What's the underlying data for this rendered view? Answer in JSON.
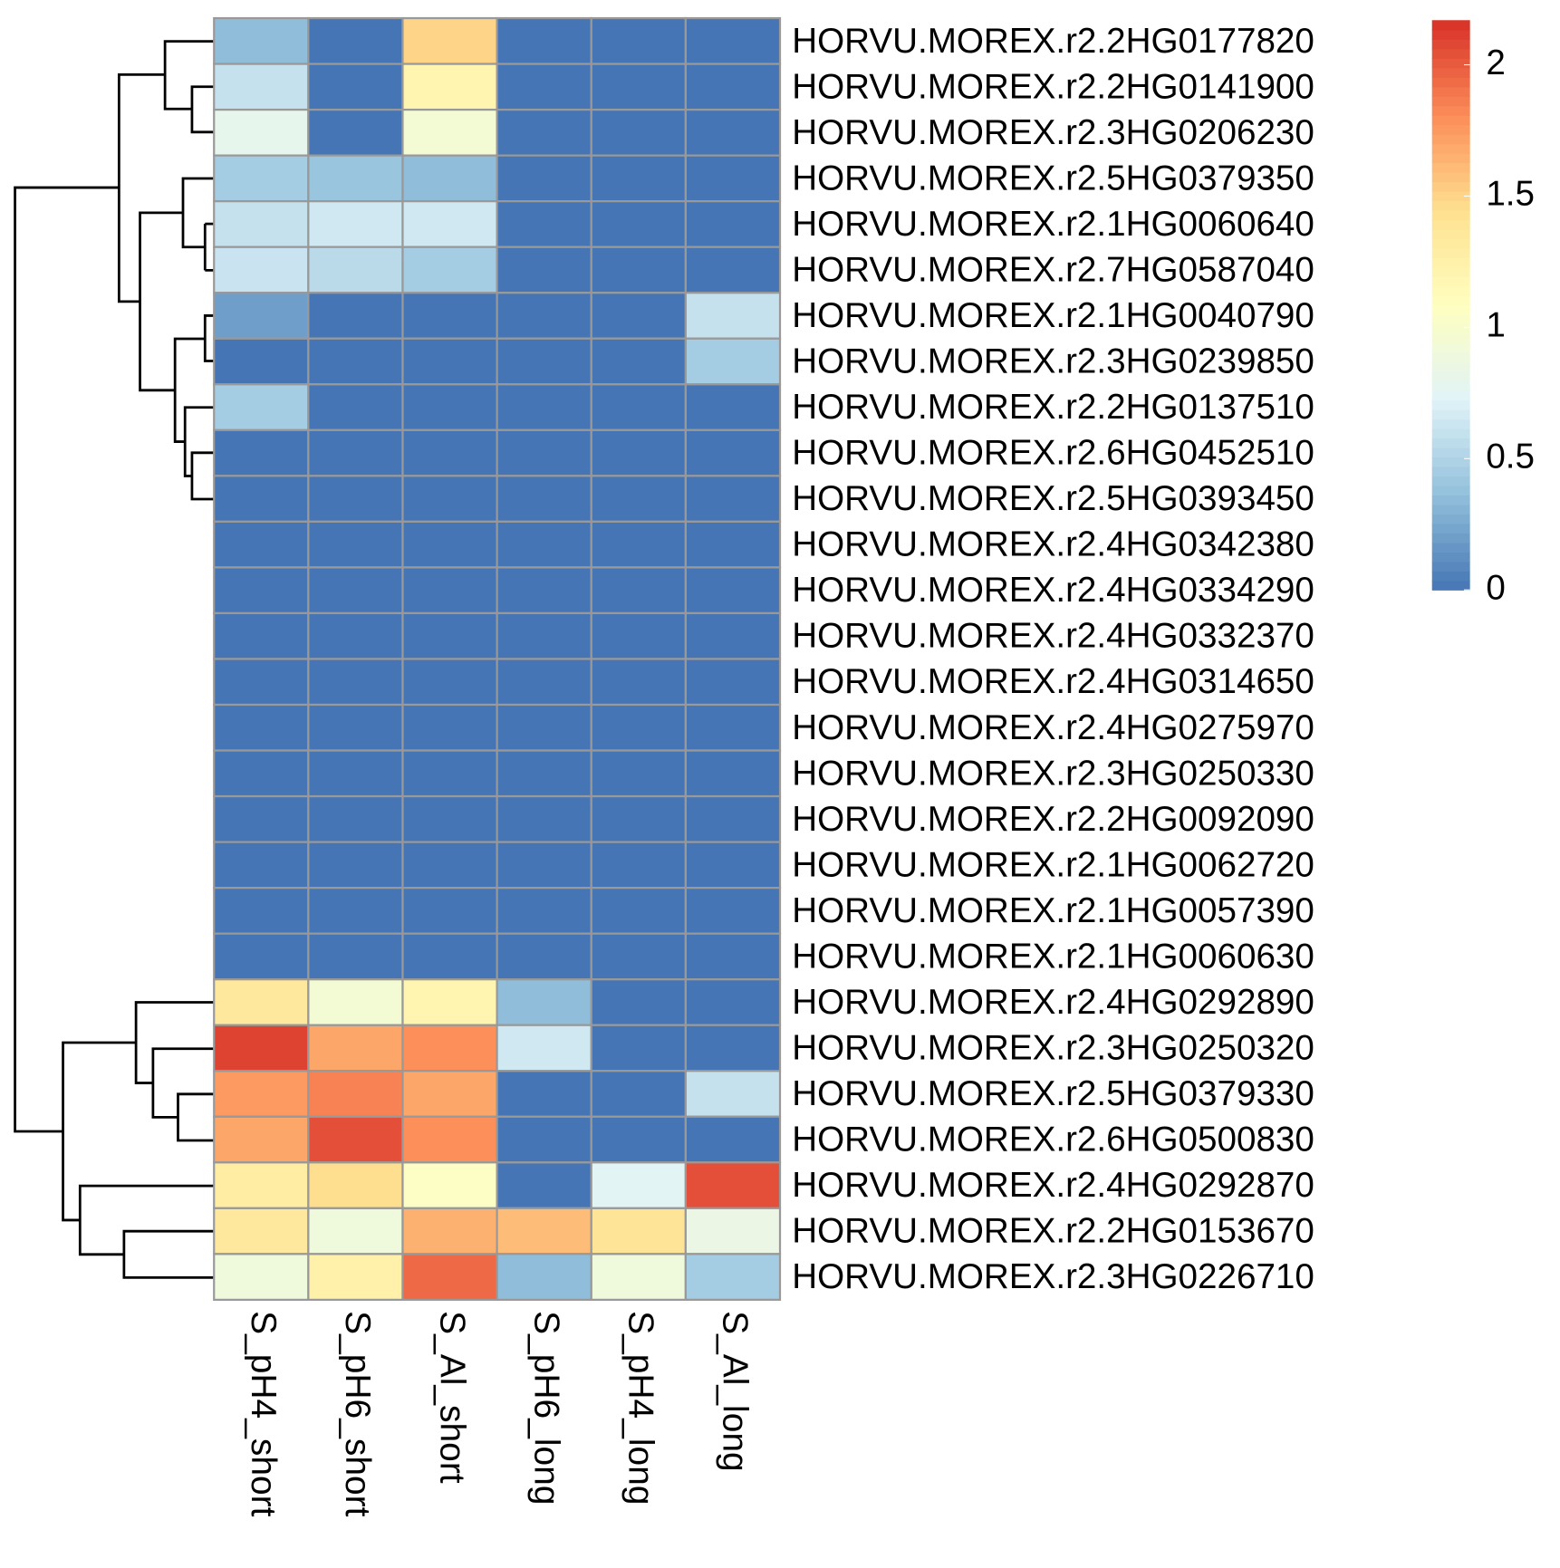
{
  "chart_data": {
    "type": "heatmap",
    "rows": [
      "HORVU.MOREX.r2.2HG0177820",
      "HORVU.MOREX.r2.2HG0141900",
      "HORVU.MOREX.r2.3HG0206230",
      "HORVU.MOREX.r2.5HG0379350",
      "HORVU.MOREX.r2.1HG0060640",
      "HORVU.MOREX.r2.7HG0587040",
      "HORVU.MOREX.r2.1HG0040790",
      "HORVU.MOREX.r2.3HG0239850",
      "HORVU.MOREX.r2.2HG0137510",
      "HORVU.MOREX.r2.6HG0452510",
      "HORVU.MOREX.r2.5HG0393450",
      "HORVU.MOREX.r2.4HG0342380",
      "HORVU.MOREX.r2.4HG0334290",
      "HORVU.MOREX.r2.4HG0332370",
      "HORVU.MOREX.r2.4HG0314650",
      "HORVU.MOREX.r2.4HG0275970",
      "HORVU.MOREX.r2.3HG0250330",
      "HORVU.MOREX.r2.2HG0092090",
      "HORVU.MOREX.r2.1HG0062720",
      "HORVU.MOREX.r2.1HG0057390",
      "HORVU.MOREX.r2.1HG0060630",
      "HORVU.MOREX.r2.4HG0292890",
      "HORVU.MOREX.r2.3HG0250320",
      "HORVU.MOREX.r2.5HG0379330",
      "HORVU.MOREX.r2.6HG0500830",
      "HORVU.MOREX.r2.4HG0292870",
      "HORVU.MOREX.r2.2HG0153670",
      "HORVU.MOREX.r2.3HG0226710"
    ],
    "columns": [
      "S_pH4_short",
      "S_pH6_short",
      "S_Al_short",
      "S_pH6_long",
      "S_pH4_long",
      "S_Al_long"
    ],
    "values": [
      [
        0.35,
        0,
        1.5,
        0,
        0,
        0
      ],
      [
        0.6,
        0,
        1.2,
        0,
        0,
        0
      ],
      [
        0.8,
        0,
        0.95,
        0,
        0,
        0
      ],
      [
        0.45,
        0.4,
        0.35,
        0,
        0,
        0
      ],
      [
        0.6,
        0.65,
        0.65,
        0,
        0,
        0
      ],
      [
        0.62,
        0.55,
        0.45,
        0,
        0,
        0
      ],
      [
        0.2,
        0,
        0,
        0,
        0,
        0.6
      ],
      [
        0,
        0,
        0,
        0,
        0,
        0.45
      ],
      [
        0.45,
        0,
        0,
        0,
        0,
        0
      ],
      [
        0,
        0,
        0,
        0,
        0,
        0
      ],
      [
        0,
        0,
        0,
        0,
        0,
        0
      ],
      [
        0,
        0,
        0,
        0,
        0,
        0
      ],
      [
        0,
        0,
        0,
        0,
        0,
        0
      ],
      [
        0,
        0,
        0,
        0,
        0,
        0
      ],
      [
        0,
        0,
        0,
        0,
        0,
        0
      ],
      [
        0,
        0,
        0,
        0,
        0,
        0
      ],
      [
        0,
        0,
        0,
        0,
        0,
        0
      ],
      [
        0,
        0,
        0,
        0,
        0,
        0
      ],
      [
        0,
        0,
        0,
        0,
        0,
        0
      ],
      [
        0,
        0,
        0,
        0,
        0,
        0
      ],
      [
        0,
        0,
        0,
        0,
        0,
        0
      ],
      [
        1.35,
        0.95,
        1.2,
        0.35,
        0,
        0
      ],
      [
        2.1,
        1.7,
        1.8,
        0.65,
        0,
        0
      ],
      [
        1.75,
        1.85,
        1.7,
        0,
        0,
        0.6
      ],
      [
        1.7,
        2.05,
        1.8,
        0,
        0,
        0
      ],
      [
        1.3,
        1.45,
        1.05,
        0,
        0.75,
        2.05
      ],
      [
        1.35,
        0.9,
        1.65,
        1.6,
        1.4,
        0.85
      ],
      [
        0.9,
        1.25,
        1.95,
        0.35,
        0.9,
        0.45
      ]
    ],
    "colors": [
      "#4575B4",
      "#91BFDB",
      "#E0F3F8",
      "#FFFFBF",
      "#FEE090",
      "#FC8D59",
      "#D73027"
    ],
    "clim": [
      0,
      2.17
    ],
    "cticks": [
      0,
      0.5,
      1,
      1.5,
      2
    ]
  }
}
